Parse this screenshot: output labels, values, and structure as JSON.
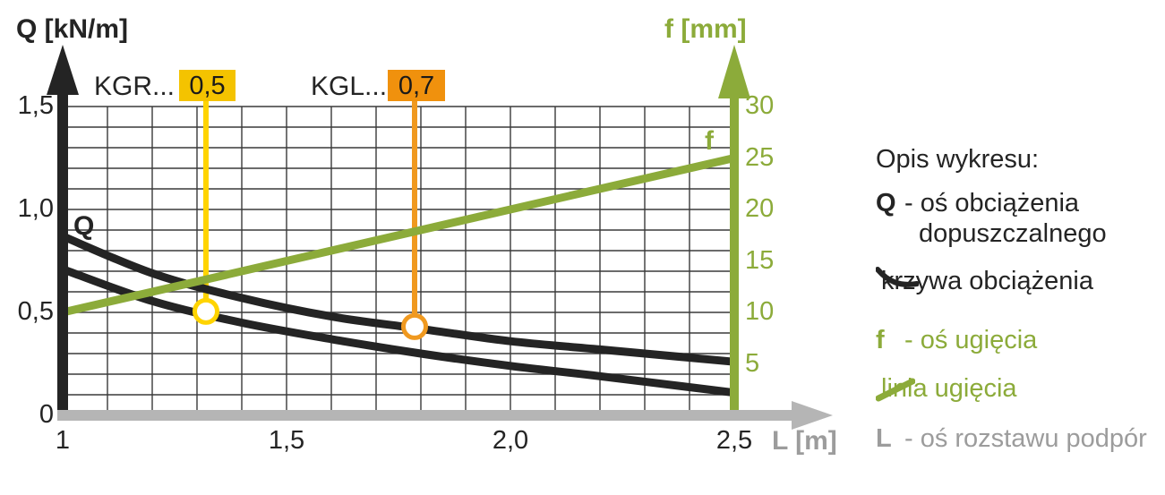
{
  "chart_data": {
    "type": "line",
    "title": "",
    "x_axis": {
      "label": "L [m]",
      "range": [
        1,
        2.5
      ],
      "grid_step": 0.1,
      "ticks": [
        {
          "label": "1",
          "value": 1
        },
        {
          "label": "1,5",
          "value": 1.5
        },
        {
          "label": "2,0",
          "value": 2
        },
        {
          "label": "2,5",
          "value": 2.5
        }
      ]
    },
    "y_axis_left": {
      "label": "Q [kN/m]",
      "range": [
        0,
        1.5
      ],
      "grid_step": 0.1,
      "color": "#242424",
      "ticks": [
        {
          "label": "1,5",
          "value": 1.5
        },
        {
          "label": "1,0",
          "value": 1
        },
        {
          "label": "0,5",
          "value": 0.5
        },
        {
          "label": "0",
          "value": 0
        }
      ]
    },
    "y_axis_right": {
      "label": "f [mm]",
      "range": [
        0,
        30
      ],
      "color": "#8CAB3A",
      "ticks": [
        {
          "label": "30",
          "value": 30
        },
        {
          "label": "25",
          "value": 25
        },
        {
          "label": "20",
          "value": 20
        },
        {
          "label": "15",
          "value": 15
        },
        {
          "label": "10",
          "value": 10
        },
        {
          "label": "5",
          "value": 5
        }
      ]
    },
    "grid": true,
    "legend_position": "right",
    "series": [
      {
        "name": "krzywa obciążenia (KGL)",
        "axis": "Q",
        "color": "#242424",
        "x": [
          1.0,
          1.2,
          1.4,
          1.6,
          1.8,
          2.0,
          2.2,
          2.5
        ],
        "y": [
          0.87,
          0.69,
          0.57,
          0.48,
          0.42,
          0.36,
          0.32,
          0.26
        ]
      },
      {
        "name": "krzywa obciążenia (KGR)",
        "axis": "Q",
        "color": "#242424",
        "x": [
          1.0,
          1.2,
          1.4,
          1.6,
          1.8,
          2.0,
          2.2,
          2.5
        ],
        "y": [
          0.71,
          0.555,
          0.45,
          0.37,
          0.3,
          0.24,
          0.19,
          0.11
        ]
      },
      {
        "name": "linia ugięcia",
        "axis": "f",
        "color": "#8CAB3A",
        "x": [
          1.0,
          2.5
        ],
        "y": [
          10,
          25
        ]
      }
    ],
    "markers": [
      {
        "label": "KGR...",
        "value": "0,5",
        "L": 1.32,
        "Q": 0.505,
        "badge_color": "#F4C300",
        "line_color": "#FFD400"
      },
      {
        "label": "KGL...",
        "value": "0,7",
        "L": 1.786,
        "Q": 0.431,
        "badge_color": "#F0910D",
        "line_color": "#F0991F"
      }
    ],
    "inline_labels": {
      "q": "Q",
      "f": "f"
    },
    "baseline_color": "#B5B5B5"
  },
  "axes_titles": {
    "q": "Q [kN/m]",
    "f": "f [mm]",
    "l": "L [m]"
  },
  "legend": {
    "title": "Opis wykresu:",
    "rows": [
      {
        "symbol": "Q",
        "text": "- oś obciążenia",
        "text2": "dopuszczalnego",
        "color": "#242424"
      },
      {
        "icon": "curve-icon",
        "text": "krzywa obciążenia",
        "color": "#242424"
      },
      {
        "symbol": "f",
        "text": "- oś ugięcia",
        "color": "#8CAB3A"
      },
      {
        "icon": "line-icon",
        "text": "linia ugięcia",
        "color": "#8CAB3A"
      },
      {
        "symbol": "L",
        "text": "- oś rozstawu podpór",
        "color": "#9C9C9C"
      }
    ]
  }
}
